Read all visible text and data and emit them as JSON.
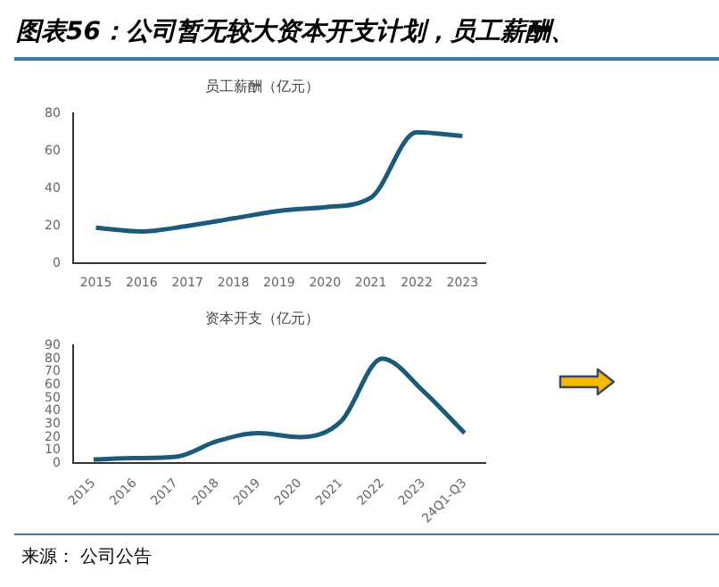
{
  "chart_data": [
    {
      "type": "line",
      "title": "员工薪酬（亿元）",
      "categories": [
        "2015",
        "2016",
        "2017",
        "2018",
        "2019",
        "2020",
        "2021",
        "2022",
        "2023"
      ],
      "series": [
        {
          "color": "#1b5a7a",
          "values": [
            19,
            17,
            20,
            24,
            28,
            30,
            35,
            70,
            68
          ]
        }
      ],
      "ylim": [
        0,
        80
      ],
      "yticks": [
        0,
        20,
        40,
        60,
        80
      ],
      "grid": false,
      "legend": false,
      "marker": "none",
      "line_style": "solid",
      "annotations": [
        "图表56：公司暂无较大资本开支计划，员工薪酬、"
      ]
    },
    {
      "type": "line",
      "title": "资本开支（亿元）",
      "categories": [
        "2015",
        "2016",
        "2017",
        "2018",
        "2019",
        "2020",
        "2021",
        "2022",
        "2023",
        "24Q1-Q3"
      ],
      "series": [
        {
          "color": "#1b5a7a",
          "values": [
            3,
            4,
            5,
            17,
            23,
            20,
            32,
            80,
            55,
            23
          ]
        }
      ],
      "ylim": [
        0,
        90
      ],
      "yticks": [
        0,
        10,
        20,
        30,
        40,
        50,
        60,
        70,
        80,
        90
      ],
      "grid": false,
      "legend": false,
      "marker": "none",
      "line_style": "solid",
      "annotations": [
        "来源： 公司公告"
      ]
    }
  ]
}
